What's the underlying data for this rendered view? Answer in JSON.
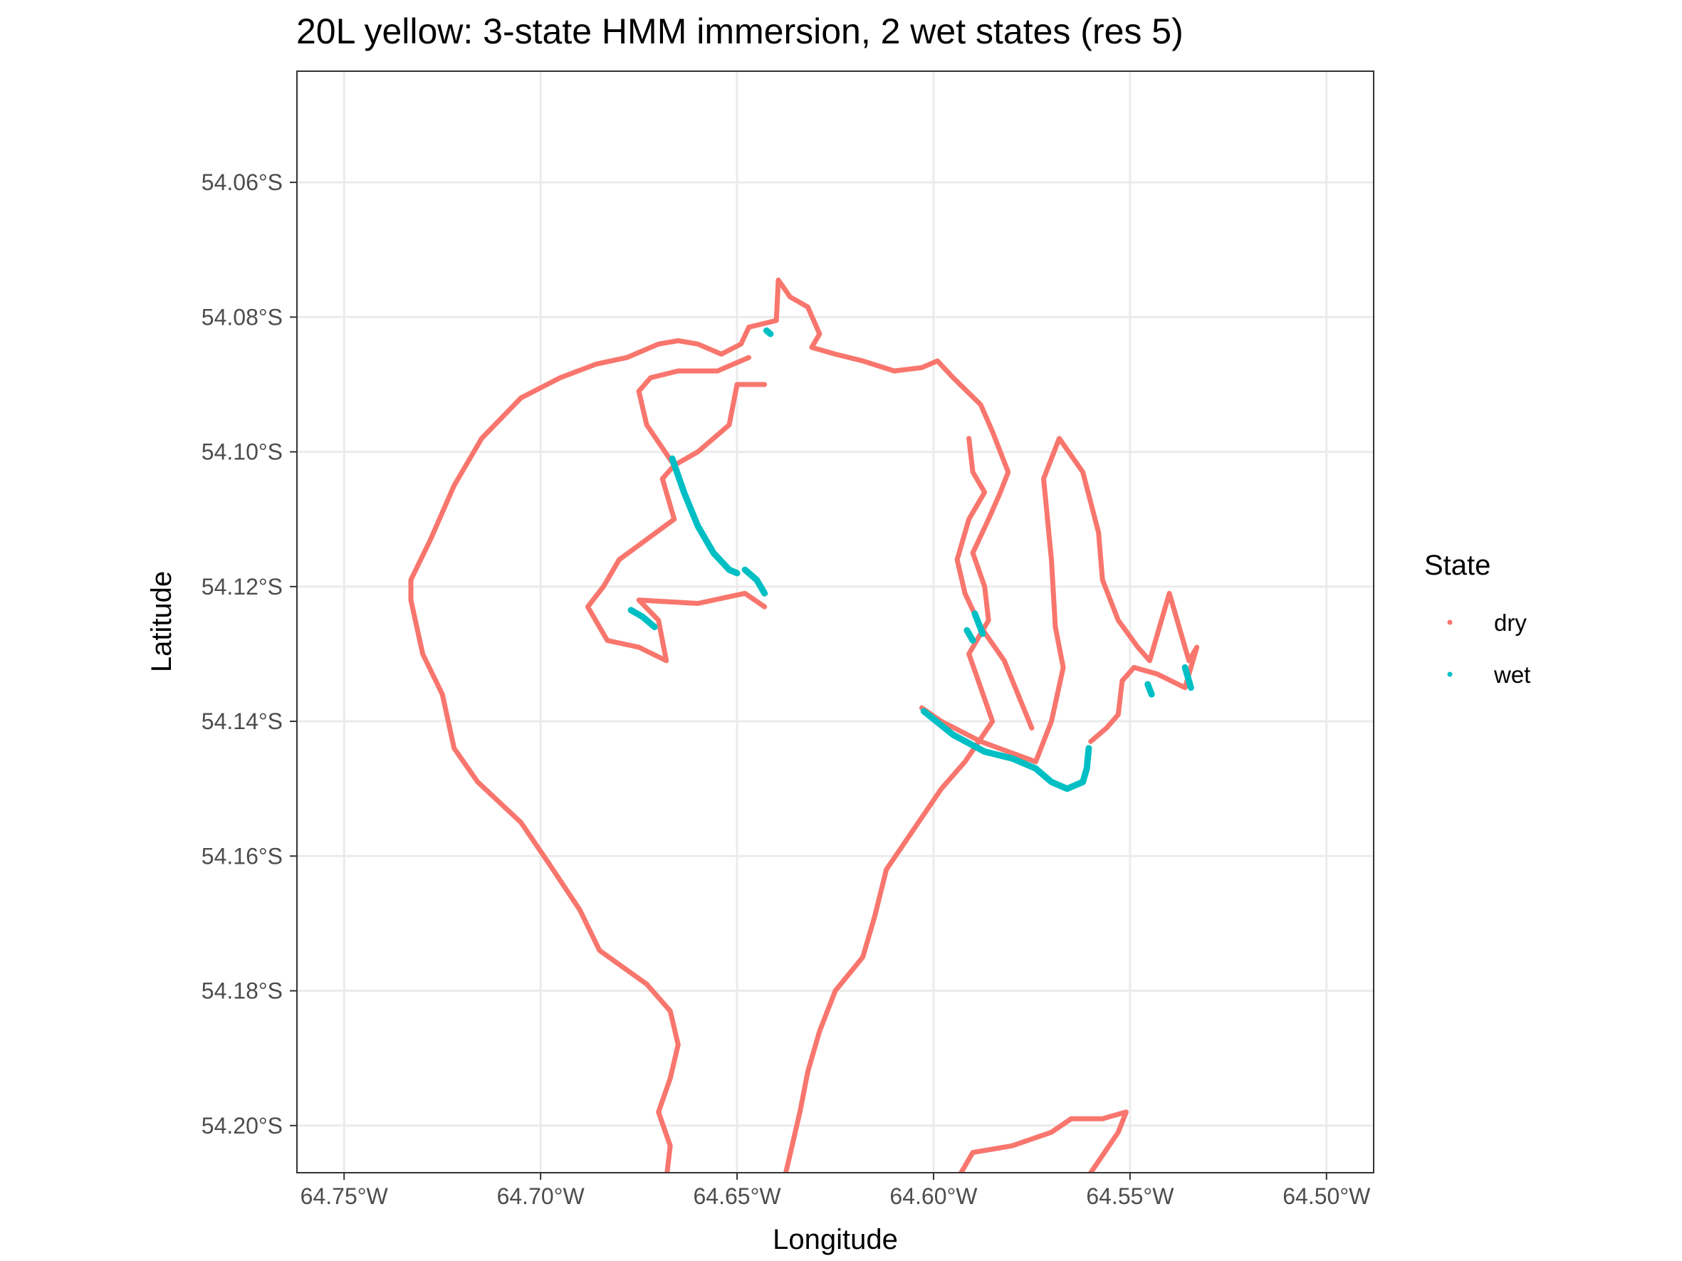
{
  "chart_data": {
    "type": "scatter",
    "title": "20L yellow: 3-state HMM immersion, 2 wet states (res 5)",
    "xlabel": "Longitude",
    "ylabel": "Latitude",
    "xlim": [
      -64.762,
      -64.488
    ],
    "ylim": [
      -54.207,
      -54.0435
    ],
    "x_ticks": [
      -64.75,
      -64.7,
      -64.65,
      -64.6,
      -64.55,
      -64.5
    ],
    "x_tick_labels": [
      "64.75°W",
      "64.70°W",
      "64.65°W",
      "64.60°W",
      "64.55°W",
      "64.50°W"
    ],
    "y_ticks": [
      -54.06,
      -54.08,
      -54.1,
      -54.12,
      -54.14,
      -54.16,
      -54.18,
      -54.2
    ],
    "y_tick_labels": [
      "54.06°S",
      "54.08°S",
      "54.10°S",
      "54.12°S",
      "54.14°S",
      "54.16°S",
      "54.18°S",
      "54.20°S"
    ],
    "grid": true,
    "legend": {
      "title": "State",
      "position": "right",
      "entries": [
        {
          "label": "dry",
          "color": "#F8766D"
        },
        {
          "label": "wet",
          "color": "#00BFC4"
        }
      ]
    },
    "series": [
      {
        "name": "dry",
        "color": "#F8766D",
        "segments": [
          [
            [
              -64.668,
              -54.208
            ],
            [
              -64.667,
              -54.203
            ],
            [
              -64.67,
              -54.198
            ],
            [
              -64.667,
              -54.193
            ],
            [
              -64.665,
              -54.188
            ],
            [
              -64.667,
              -54.183
            ],
            [
              -64.673,
              -54.179
            ],
            [
              -64.685,
              -54.174
            ],
            [
              -64.69,
              -54.168
            ],
            [
              -64.698,
              -54.161
            ],
            [
              -64.705,
              -54.155
            ],
            [
              -64.716,
              -54.149
            ],
            [
              -64.722,
              -54.144
            ],
            [
              -64.725,
              -54.136
            ],
            [
              -64.73,
              -54.13
            ],
            [
              -64.733,
              -54.122
            ],
            [
              -64.733,
              -54.119
            ],
            [
              -64.728,
              -54.113
            ],
            [
              -64.722,
              -54.105
            ],
            [
              -64.715,
              -54.098
            ],
            [
              -64.705,
              -54.092
            ],
            [
              -64.695,
              -54.089
            ],
            [
              -64.686,
              -54.087
            ],
            [
              -64.678,
              -54.086
            ],
            [
              -64.67,
              -54.084
            ],
            [
              -64.665,
              -54.0835
            ],
            [
              -64.66,
              -54.084
            ],
            [
              -64.654,
              -54.0855
            ],
            [
              -64.649,
              -54.084
            ],
            [
              -64.647,
              -54.0815
            ],
            [
              -64.64,
              -54.0805
            ],
            [
              -64.6395,
              -54.0745
            ],
            [
              -64.6365,
              -54.077
            ],
            [
              -64.632,
              -54.0785
            ],
            [
              -64.629,
              -54.0825
            ],
            [
              -64.631,
              -54.0845
            ],
            [
              -64.625,
              -54.0855
            ],
            [
              -64.618,
              -54.0865
            ],
            [
              -64.61,
              -54.088
            ],
            [
              -64.603,
              -54.0875
            ],
            [
              -64.599,
              -54.0865
            ],
            [
              -64.595,
              -54.089
            ],
            [
              -64.588,
              -54.093
            ],
            [
              -64.585,
              -54.097
            ],
            [
              -64.581,
              -54.103
            ],
            [
              -64.583,
              -54.106
            ],
            [
              -64.586,
              -54.11
            ],
            [
              -64.59,
              -54.115
            ],
            [
              -64.587,
              -54.12
            ],
            [
              -64.586,
              -54.125
            ],
            [
              -64.591,
              -54.13
            ],
            [
              -64.588,
              -54.135
            ],
            [
              -64.585,
              -54.14
            ],
            [
              -64.592,
              -54.146
            ],
            [
              -64.598,
              -54.15
            ],
            [
              -64.605,
              -54.156
            ],
            [
              -64.612,
              -54.162
            ],
            [
              -64.615,
              -54.169
            ],
            [
              -64.618,
              -54.175
            ],
            [
              -64.625,
              -54.18
            ],
            [
              -64.629,
              -54.186
            ],
            [
              -64.632,
              -54.192
            ],
            [
              -64.634,
              -54.198
            ],
            [
              -64.636,
              -54.203
            ],
            [
              -64.638,
              -54.208
            ]
          ],
          [
            [
              -64.643,
              -54.09
            ],
            [
              -64.65,
              -54.09
            ],
            [
              -64.652,
              -54.096
            ],
            [
              -64.66,
              -54.1
            ],
            [
              -64.666,
              -54.102
            ],
            [
              -64.669,
              -54.104
            ],
            [
              -64.666,
              -54.11
            ],
            [
              -64.68,
              -54.116
            ],
            [
              -64.684,
              -54.12
            ],
            [
              -64.688,
              -54.123
            ],
            [
              -64.683,
              -54.128
            ],
            [
              -64.675,
              -54.129
            ],
            [
              -64.668,
              -54.131
            ],
            [
              -64.67,
              -54.125
            ],
            [
              -64.675,
              -54.122
            ],
            [
              -64.66,
              -54.1225
            ],
            [
              -64.648,
              -54.121
            ],
            [
              -64.643,
              -54.123
            ]
          ],
          [
            [
              -64.666,
              -54.102
            ],
            [
              -64.673,
              -54.096
            ],
            [
              -64.675,
              -54.091
            ],
            [
              -64.672,
              -54.089
            ],
            [
              -64.665,
              -54.088
            ],
            [
              -64.655,
              -54.088
            ],
            [
              -64.647,
              -54.086
            ]
          ],
          [
            [
              -64.603,
              -54.138
            ],
            [
              -64.598,
              -54.14
            ],
            [
              -64.588,
              -54.143
            ],
            [
              -64.574,
              -54.146
            ],
            [
              -64.57,
              -54.14
            ],
            [
              -64.567,
              -54.132
            ],
            [
              -64.569,
              -54.126
            ],
            [
              -64.57,
              -54.116
            ],
            [
              -64.572,
              -54.104
            ],
            [
              -64.568,
              -54.098
            ],
            [
              -64.562,
              -54.103
            ],
            [
              -64.558,
              -54.112
            ],
            [
              -64.557,
              -54.119
            ],
            [
              -64.553,
              -54.125
            ],
            [
              -64.548,
              -54.129
            ],
            [
              -64.545,
              -54.131
            ],
            [
              -64.542,
              -54.125
            ],
            [
              -64.54,
              -54.121
            ],
            [
              -64.537,
              -54.127
            ],
            [
              -64.535,
              -54.131
            ],
            [
              -64.533,
              -54.129
            ],
            [
              -64.536,
              -54.135
            ],
            [
              -64.543,
              -54.133
            ],
            [
              -64.549,
              -54.132
            ],
            [
              -64.552,
              -54.134
            ],
            [
              -64.553,
              -54.139
            ],
            [
              -64.556,
              -54.141
            ],
            [
              -64.56,
              -54.143
            ]
          ],
          [
            [
              -64.575,
              -54.141
            ],
            [
              -64.582,
              -54.131
            ],
            [
              -64.588,
              -54.126
            ],
            [
              -64.592,
              -54.121
            ],
            [
              -64.594,
              -54.116
            ],
            [
              -64.591,
              -54.11
            ],
            [
              -64.587,
              -54.106
            ],
            [
              -64.59,
              -54.103
            ],
            [
              -64.591,
              -54.098
            ]
          ],
          [
            [
              -64.593,
              -54.207
            ],
            [
              -64.59,
              -54.204
            ],
            [
              -64.58,
              -54.203
            ],
            [
              -64.57,
              -54.201
            ],
            [
              -64.565,
              -54.199
            ],
            [
              -64.557,
              -54.199
            ],
            [
              -64.551,
              -54.198
            ],
            [
              -64.553,
              -54.201
            ],
            [
              -64.56,
              -54.207
            ]
          ]
        ]
      },
      {
        "name": "wet",
        "color": "#00BFC4",
        "segments": [
          [
            [
              -64.6665,
              -54.101
            ],
            [
              -64.6635,
              -54.106
            ],
            [
              -64.66,
              -54.111
            ],
            [
              -64.656,
              -54.115
            ],
            [
              -64.652,
              -54.1175
            ],
            [
              -64.65,
              -54.118
            ]
          ],
          [
            [
              -64.648,
              -54.1175
            ],
            [
              -64.645,
              -54.119
            ],
            [
              -64.643,
              -54.121
            ]
          ],
          [
            [
              -64.677,
              -54.1235
            ],
            [
              -64.674,
              -54.1245
            ],
            [
              -64.671,
              -54.126
            ]
          ],
          [
            [
              -64.6025,
              -54.1385
            ],
            [
              -64.595,
              -54.142
            ],
            [
              -64.587,
              -54.1445
            ],
            [
              -64.58,
              -54.1455
            ],
            [
              -64.574,
              -54.147
            ],
            [
              -64.57,
              -54.149
            ],
            [
              -64.566,
              -54.15
            ],
            [
              -64.562,
              -54.149
            ],
            [
              -64.561,
              -54.147
            ],
            [
              -64.5605,
              -54.144
            ]
          ],
          [
            [
              -64.5915,
              -54.1265
            ],
            [
              -64.59,
              -54.128
            ]
          ],
          [
            [
              -64.5895,
              -54.124
            ],
            [
              -64.5875,
              -54.127
            ]
          ],
          [
            [
              -64.5455,
              -54.1345
            ],
            [
              -64.5445,
              -54.136
            ]
          ],
          [
            [
              -64.536,
              -54.132
            ],
            [
              -64.5345,
              -54.135
            ]
          ],
          [
            [
              -64.6425,
              -54.082
            ],
            [
              -64.6415,
              -54.0825
            ]
          ]
        ]
      }
    ]
  }
}
